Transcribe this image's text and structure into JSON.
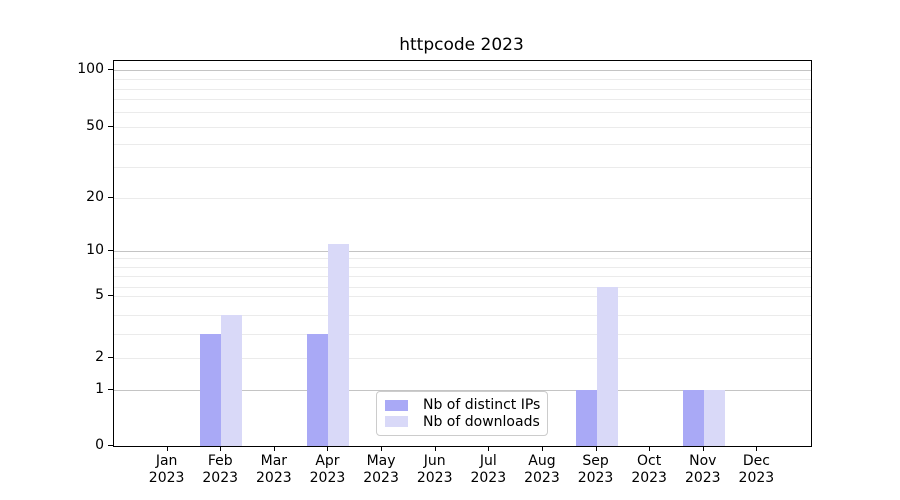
{
  "chart_data": {
    "type": "bar",
    "title": "httpcode 2023",
    "categories": [
      "Jan 2023",
      "Feb 2023",
      "Mar 2023",
      "Apr 2023",
      "May 2023",
      "Jun 2023",
      "Jul 2023",
      "Aug 2023",
      "Sep 2023",
      "Oct 2023",
      "Nov 2023",
      "Dec 2023"
    ],
    "series": [
      {
        "name": "Nb of distinct IPs",
        "color": "#a9a9f6",
        "values": [
          0,
          3,
          0,
          3,
          0,
          0,
          0,
          0,
          1,
          0,
          1,
          0
        ]
      },
      {
        "name": "Nb of downloads",
        "color": "#d9d9f8",
        "values": [
          0,
          4,
          0,
          11,
          0,
          0,
          0,
          0,
          6,
          0,
          1,
          0
        ]
      }
    ],
    "yticks": [
      0,
      1,
      2,
      5,
      10,
      20,
      50,
      100
    ],
    "ylim": [
      0,
      110
    ],
    "yscale": "log-like (compressed near zero, ticks 0,1,2,5,10,20,50,100)",
    "xlabel": "",
    "ylabel": "",
    "grid": "horizontal",
    "legend_position": "inside lower center-right"
  }
}
